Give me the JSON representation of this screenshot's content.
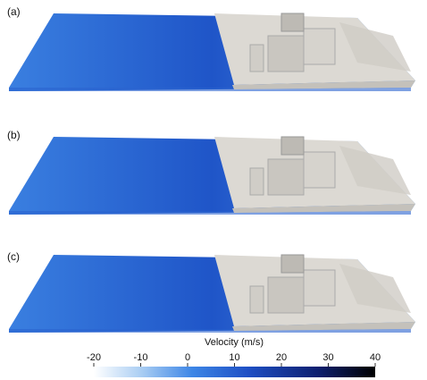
{
  "panels": [
    {
      "label": "(a)"
    },
    {
      "label": "(b)"
    },
    {
      "label": "(c)"
    }
  ],
  "colorbar": {
    "title": "Velocity (m/s)",
    "range": [
      -20,
      40
    ],
    "ticks": [
      -20,
      -10,
      0,
      10,
      20,
      30,
      40
    ]
  }
}
